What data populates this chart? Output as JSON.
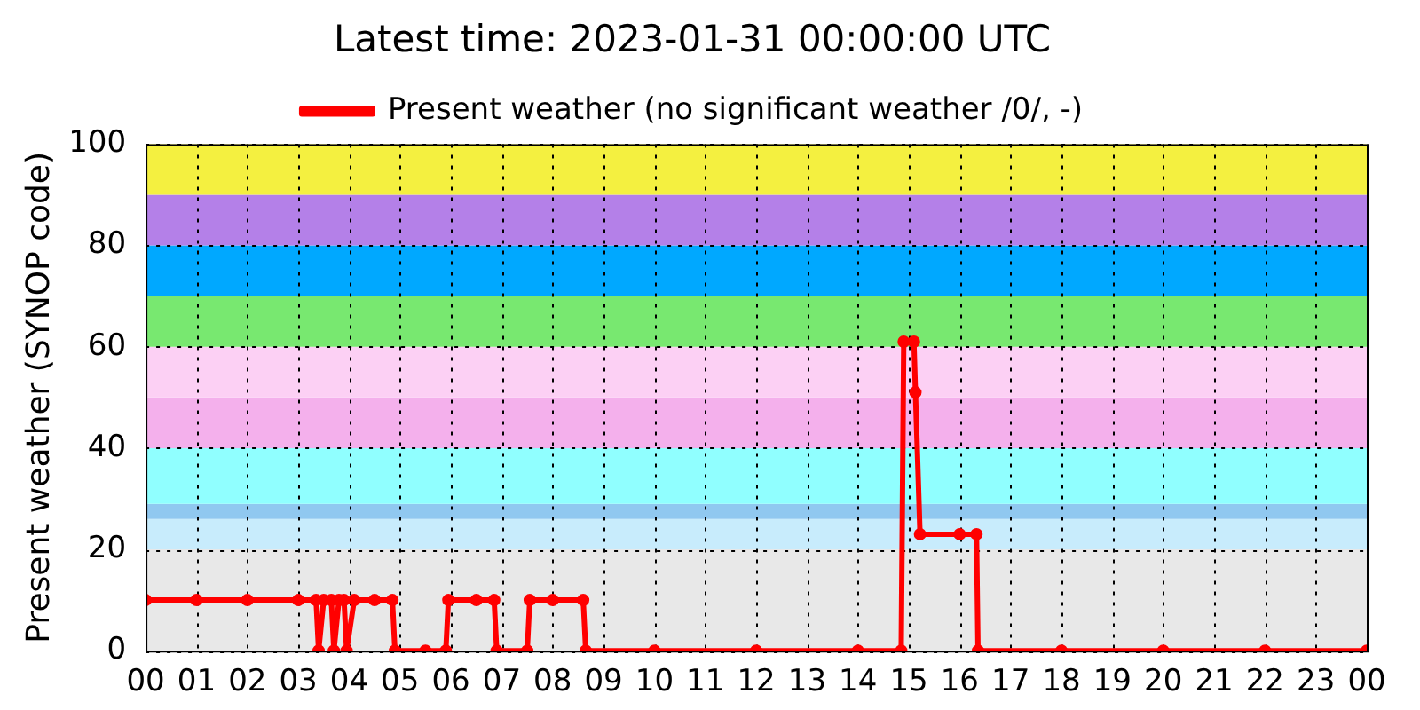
{
  "chart_data": {
    "type": "line",
    "title": "Latest time: 2023-01-31 00:00:00 UTC",
    "ylabel": "Present weather (SYNOP code)",
    "xlim": [
      0,
      24
    ],
    "xticks": [
      {
        "value": 0,
        "label": "00"
      },
      {
        "value": 1,
        "label": "01"
      },
      {
        "value": 2,
        "label": "02"
      },
      {
        "value": 3,
        "label": "03"
      },
      {
        "value": 4,
        "label": "04"
      },
      {
        "value": 5,
        "label": "05"
      },
      {
        "value": 6,
        "label": "06"
      },
      {
        "value": 7,
        "label": "07"
      },
      {
        "value": 8,
        "label": "08"
      },
      {
        "value": 9,
        "label": "09"
      },
      {
        "value": 10,
        "label": "10"
      },
      {
        "value": 11,
        "label": "11"
      },
      {
        "value": 12,
        "label": "12"
      },
      {
        "value": 13,
        "label": "13"
      },
      {
        "value": 14,
        "label": "14"
      },
      {
        "value": 15,
        "label": "15"
      },
      {
        "value": 16,
        "label": "16"
      },
      {
        "value": 17,
        "label": "17"
      },
      {
        "value": 18,
        "label": "18"
      },
      {
        "value": 19,
        "label": "19"
      },
      {
        "value": 20,
        "label": "20"
      },
      {
        "value": 21,
        "label": "21"
      },
      {
        "value": 22,
        "label": "22"
      },
      {
        "value": 23,
        "label": "23"
      },
      {
        "value": 24,
        "label": "00"
      }
    ],
    "ylim": [
      0,
      100
    ],
    "yticks": [
      0,
      20,
      40,
      60,
      80,
      100
    ],
    "grid": true,
    "legend": "top",
    "marker": "circle",
    "line_style": "solid",
    "bands": [
      {
        "axis": "y",
        "from": 0,
        "to": 20,
        "color": "#e8e8e8"
      },
      {
        "axis": "y",
        "from": 20,
        "to": 26,
        "color": "#c8ecfc"
      },
      {
        "axis": "y",
        "from": 26,
        "to": 29,
        "color": "#90c8f0"
      },
      {
        "axis": "y",
        "from": 29,
        "to": 40,
        "color": "#90ffff"
      },
      {
        "axis": "y",
        "from": 40,
        "to": 50,
        "color": "#f4b0ec"
      },
      {
        "axis": "y",
        "from": 50,
        "to": 60,
        "color": "#fcd0f4"
      },
      {
        "axis": "y",
        "from": 60,
        "to": 70,
        "color": "#78e870"
      },
      {
        "axis": "y",
        "from": 70,
        "to": 80,
        "color": "#00a8ff"
      },
      {
        "axis": "y",
        "from": 80,
        "to": 90,
        "color": "#b480e8"
      },
      {
        "axis": "y",
        "from": 90,
        "to": 100,
        "color": "#f4f040"
      }
    ],
    "series": [
      {
        "name": "Present weather (no significant weather /0/, -)",
        "color": "#ff0000",
        "x": [
          0,
          1,
          2,
          3,
          3.35,
          3.4,
          3.5,
          3.65,
          3.7,
          3.8,
          3.9,
          3.95,
          4.1,
          4.5,
          4.85,
          4.9,
          5.5,
          5.9,
          5.95,
          6.5,
          6.85,
          6.9,
          7.5,
          7.55,
          8,
          8.6,
          8.65,
          10,
          12,
          14,
          14.85,
          14.9,
          15.1,
          15.13,
          15.22,
          16,
          16.33,
          16.36,
          18,
          20,
          22,
          24
        ],
        "values": [
          10,
          10,
          10,
          10,
          10,
          0,
          10,
          10,
          0,
          10,
          10,
          0,
          10,
          10,
          10,
          0,
          0,
          0,
          10,
          10,
          10,
          0,
          0,
          10,
          10,
          10,
          0,
          0,
          0,
          0,
          0,
          61,
          61,
          51,
          23,
          23,
          23,
          0,
          0,
          0,
          0,
          0
        ]
      }
    ]
  }
}
